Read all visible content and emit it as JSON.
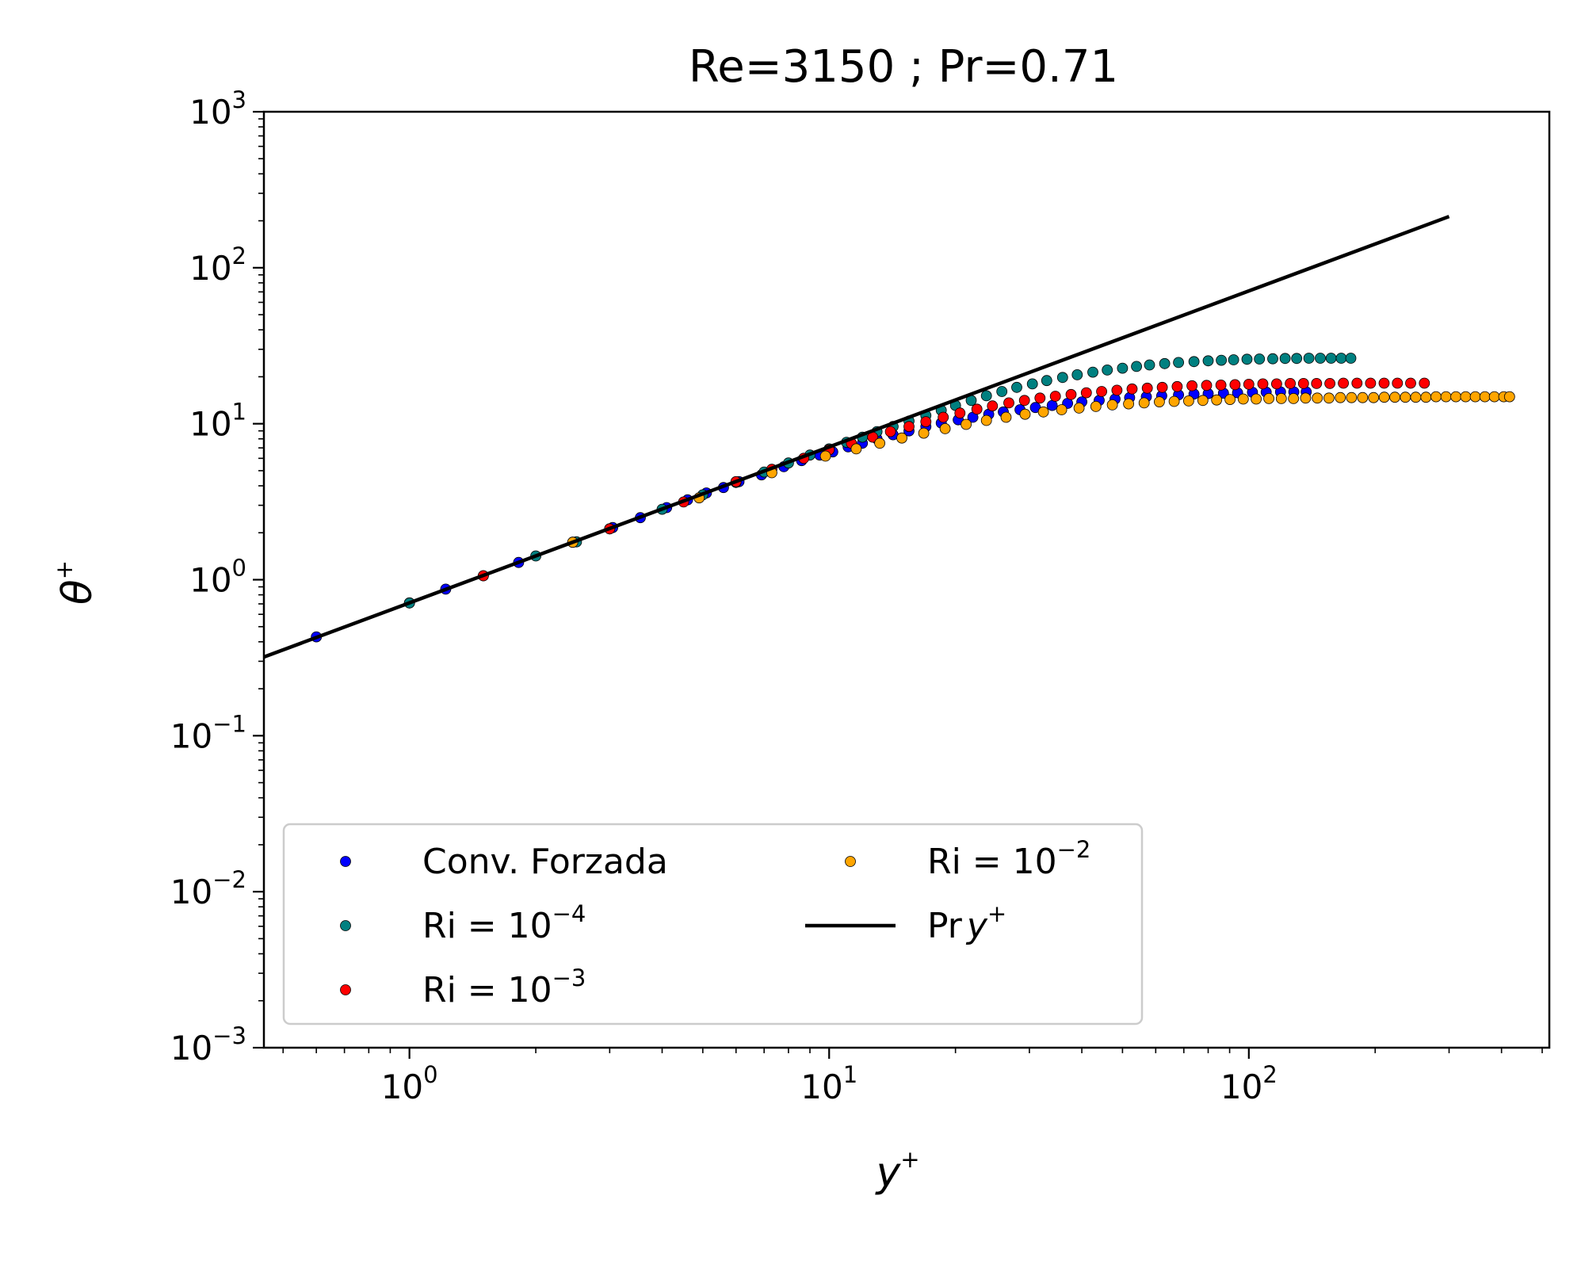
{
  "chart_data": {
    "type": "scatter",
    "title": "Re=3150 ; Pr=0.71",
    "xlabel": "y",
    "xlabel_sup": "+",
    "ylabel": "θ",
    "ylabel_sup": "+",
    "xscale": "log",
    "yscale": "log",
    "xlim": [
      0.45,
      520
    ],
    "ylim": [
      0.001,
      1000
    ],
    "x_ticks": [
      {
        "value": 1,
        "base": "10",
        "exp": "0"
      },
      {
        "value": 10,
        "base": "10",
        "exp": "1"
      },
      {
        "value": 100,
        "base": "10",
        "exp": "2"
      }
    ],
    "y_ticks": [
      {
        "value": 0.001,
        "base": "10",
        "exp": "−3"
      },
      {
        "value": 0.01,
        "base": "10",
        "exp": "−2"
      },
      {
        "value": 0.1,
        "base": "10",
        "exp": "−1"
      },
      {
        "value": 1,
        "base": "10",
        "exp": "0"
      },
      {
        "value": 10,
        "base": "10",
        "exp": "1"
      },
      {
        "value": 100,
        "base": "10",
        "exp": "2"
      },
      {
        "value": 1000,
        "base": "10",
        "exp": "3"
      }
    ],
    "legend_position": "lower-left",
    "series": [
      {
        "name": "Conv. Forzada",
        "legend_base": "Conv. Forzada",
        "legend_exp": "",
        "color": "#0000ff",
        "kind": "scatter",
        "points": [
          [
            0.6,
            0.43
          ],
          [
            1.0,
            0.71
          ],
          [
            1.22,
            0.87
          ],
          [
            1.5,
            1.06
          ],
          [
            1.82,
            1.29
          ],
          [
            2.45,
            1.74
          ],
          [
            3.05,
            2.16
          ],
          [
            3.55,
            2.5
          ],
          [
            4.1,
            2.9
          ],
          [
            4.6,
            3.25
          ],
          [
            5.1,
            3.6
          ],
          [
            5.6,
            3.9
          ],
          [
            6.1,
            4.25
          ],
          [
            6.9,
            4.7
          ],
          [
            7.8,
            5.3
          ],
          [
            8.6,
            5.8
          ],
          [
            9.5,
            6.3
          ],
          [
            10.2,
            6.6
          ],
          [
            11.1,
            7.1
          ],
          [
            12.0,
            7.5
          ],
          [
            13.0,
            8.0
          ],
          [
            14.2,
            8.5
          ],
          [
            15.5,
            9.0
          ],
          [
            17.0,
            9.6
          ],
          [
            18.5,
            10.1
          ],
          [
            20.3,
            10.6
          ],
          [
            22.0,
            11.0
          ],
          [
            24.0,
            11.5
          ],
          [
            26.0,
            11.9
          ],
          [
            28.5,
            12.3
          ],
          [
            31.0,
            12.7
          ],
          [
            34.0,
            13.1
          ],
          [
            37.0,
            13.5
          ],
          [
            40.0,
            13.8
          ],
          [
            44.0,
            14.1
          ],
          [
            48.0,
            14.4
          ],
          [
            52.0,
            14.7
          ],
          [
            57.0,
            14.9
          ],
          [
            62.0,
            15.1
          ],
          [
            68.0,
            15.3
          ],
          [
            74.0,
            15.5
          ],
          [
            80.0,
            15.6
          ],
          [
            87.0,
            15.7
          ],
          [
            94.0,
            15.8
          ],
          [
            102.0,
            15.9
          ],
          [
            110.0,
            15.95
          ],
          [
            119.0,
            16.0
          ],
          [
            128.0,
            16.0
          ],
          [
            137.0,
            16.0
          ]
        ]
      },
      {
        "name": "Ri = 10−4",
        "legend_base": "Ri = 10",
        "legend_exp": "−4",
        "color": "#008080",
        "kind": "scatter",
        "points": [
          [
            1.0,
            0.71
          ],
          [
            2.0,
            1.42
          ],
          [
            2.5,
            1.75
          ],
          [
            3.0,
            2.12
          ],
          [
            4.0,
            2.83
          ],
          [
            5.0,
            3.5
          ],
          [
            6.0,
            4.2
          ],
          [
            7.0,
            4.9
          ],
          [
            8.0,
            5.6
          ],
          [
            9.0,
            6.3
          ],
          [
            10.0,
            6.9
          ],
          [
            11.0,
            7.6
          ],
          [
            12.0,
            8.2
          ],
          [
            13.0,
            8.9
          ],
          [
            14.2,
            9.6
          ],
          [
            15.5,
            10.4
          ],
          [
            17.0,
            11.3
          ],
          [
            18.5,
            12.2
          ],
          [
            20.0,
            13.1
          ],
          [
            21.8,
            14.1
          ],
          [
            23.7,
            15.1
          ],
          [
            25.8,
            16.1
          ],
          [
            28.0,
            17.1
          ],
          [
            30.5,
            18.0
          ],
          [
            33.0,
            18.9
          ],
          [
            36.0,
            19.8
          ],
          [
            39.0,
            20.6
          ],
          [
            42.5,
            21.4
          ],
          [
            46.0,
            22.1
          ],
          [
            50.0,
            22.7
          ],
          [
            54.0,
            23.3
          ],
          [
            58.0,
            23.8
          ],
          [
            63.0,
            24.3
          ],
          [
            68.0,
            24.7
          ],
          [
            74.0,
            25.0
          ],
          [
            80.0,
            25.3
          ],
          [
            86.0,
            25.5
          ],
          [
            92.0,
            25.7
          ],
          [
            99.0,
            25.9
          ],
          [
            106.0,
            26.0
          ],
          [
            114.0,
            26.1
          ],
          [
            122.0,
            26.2
          ],
          [
            130.0,
            26.2
          ],
          [
            139.0,
            26.3
          ],
          [
            148.0,
            26.3
          ],
          [
            157.0,
            26.3
          ],
          [
            166.0,
            26.3
          ],
          [
            175.0,
            26.3
          ]
        ]
      },
      {
        "name": "Ri = 10−3",
        "legend_base": "Ri = 10",
        "legend_exp": "−3",
        "color": "#ff0000",
        "kind": "scatter",
        "points": [
          [
            1.5,
            1.06
          ],
          [
            3.0,
            2.12
          ],
          [
            4.5,
            3.15
          ],
          [
            6.0,
            4.25
          ],
          [
            7.3,
            5.1
          ],
          [
            8.7,
            6.0
          ],
          [
            10.0,
            6.8
          ],
          [
            11.3,
            7.5
          ],
          [
            12.7,
            8.2
          ],
          [
            14.0,
            8.9
          ],
          [
            15.5,
            9.6
          ],
          [
            17.0,
            10.3
          ],
          [
            18.7,
            11.0
          ],
          [
            20.5,
            11.7
          ],
          [
            22.5,
            12.4
          ],
          [
            24.5,
            13.0
          ],
          [
            26.8,
            13.6
          ],
          [
            29.2,
            14.1
          ],
          [
            31.8,
            14.6
          ],
          [
            34.6,
            15.0
          ],
          [
            37.7,
            15.4
          ],
          [
            41.0,
            15.8
          ],
          [
            44.6,
            16.1
          ],
          [
            48.5,
            16.4
          ],
          [
            52.7,
            16.7
          ],
          [
            57.3,
            16.9
          ],
          [
            62.2,
            17.1
          ],
          [
            67.5,
            17.3
          ],
          [
            73.2,
            17.5
          ],
          [
            79.3,
            17.6
          ],
          [
            85.8,
            17.7
          ],
          [
            92.7,
            17.8
          ],
          [
            100.0,
            17.9
          ],
          [
            108.0,
            18.0
          ],
          [
            116.5,
            18.0
          ],
          [
            125.5,
            18.1
          ],
          [
            135.0,
            18.1
          ],
          [
            145.0,
            18.1
          ],
          [
            156.0,
            18.1
          ],
          [
            168.0,
            18.2
          ],
          [
            181.0,
            18.2
          ],
          [
            195.0,
            18.2
          ],
          [
            210.0,
            18.2
          ],
          [
            226.0,
            18.2
          ],
          [
            243.0,
            18.2
          ],
          [
            262.0,
            18.2
          ]
        ]
      },
      {
        "name": "Ri = 10−2",
        "legend_base": "Ri = 10",
        "legend_exp": "−2",
        "color": "#ffa500",
        "kind": "scatter",
        "points": [
          [
            2.45,
            1.74
          ],
          [
            4.9,
            3.35
          ],
          [
            7.3,
            4.85
          ],
          [
            9.8,
            6.2
          ],
          [
            11.6,
            6.9
          ],
          [
            13.2,
            7.5
          ],
          [
            14.9,
            8.1
          ],
          [
            16.8,
            8.7
          ],
          [
            18.9,
            9.3
          ],
          [
            21.2,
            9.9
          ],
          [
            23.7,
            10.5
          ],
          [
            26.4,
            11.0
          ],
          [
            29.3,
            11.5
          ],
          [
            32.4,
            11.9
          ],
          [
            35.8,
            12.3
          ],
          [
            39.4,
            12.6
          ],
          [
            43.2,
            12.9
          ],
          [
            47.3,
            13.2
          ],
          [
            51.7,
            13.4
          ],
          [
            56.3,
            13.6
          ],
          [
            61.2,
            13.8
          ],
          [
            66.4,
            13.9
          ],
          [
            71.9,
            14.0
          ],
          [
            77.7,
            14.1
          ],
          [
            83.8,
            14.2
          ],
          [
            90.2,
            14.3
          ],
          [
            97.0,
            14.4
          ],
          [
            104.1,
            14.4
          ],
          [
            111.6,
            14.5
          ],
          [
            119.5,
            14.5
          ],
          [
            127.8,
            14.5
          ],
          [
            136.5,
            14.6
          ],
          [
            145.6,
            14.6
          ],
          [
            155.2,
            14.6
          ],
          [
            165.2,
            14.7
          ],
          [
            175.7,
            14.7
          ],
          [
            186.7,
            14.7
          ],
          [
            198.2,
            14.7
          ],
          [
            210.2,
            14.8
          ],
          [
            222.8,
            14.8
          ],
          [
            236.0,
            14.8
          ],
          [
            249.8,
            14.8
          ],
          [
            264.2,
            14.8
          ],
          [
            279.3,
            14.9
          ],
          [
            295.0,
            14.9
          ],
          [
            311.4,
            14.9
          ],
          [
            328.6,
            14.9
          ],
          [
            346.5,
            14.9
          ],
          [
            365.2,
            14.9
          ],
          [
            384.7,
            14.9
          ],
          [
            405.0,
            14.9
          ],
          [
            418.0,
            14.9
          ]
        ]
      },
      {
        "name": "Pr y+",
        "legend_base": "Pr",
        "legend_var": "y",
        "legend_exp": "+",
        "color": "#000000",
        "kind": "line",
        "points": [
          [
            0.45,
            0.3195
          ],
          [
            300,
            213
          ]
        ]
      }
    ]
  }
}
